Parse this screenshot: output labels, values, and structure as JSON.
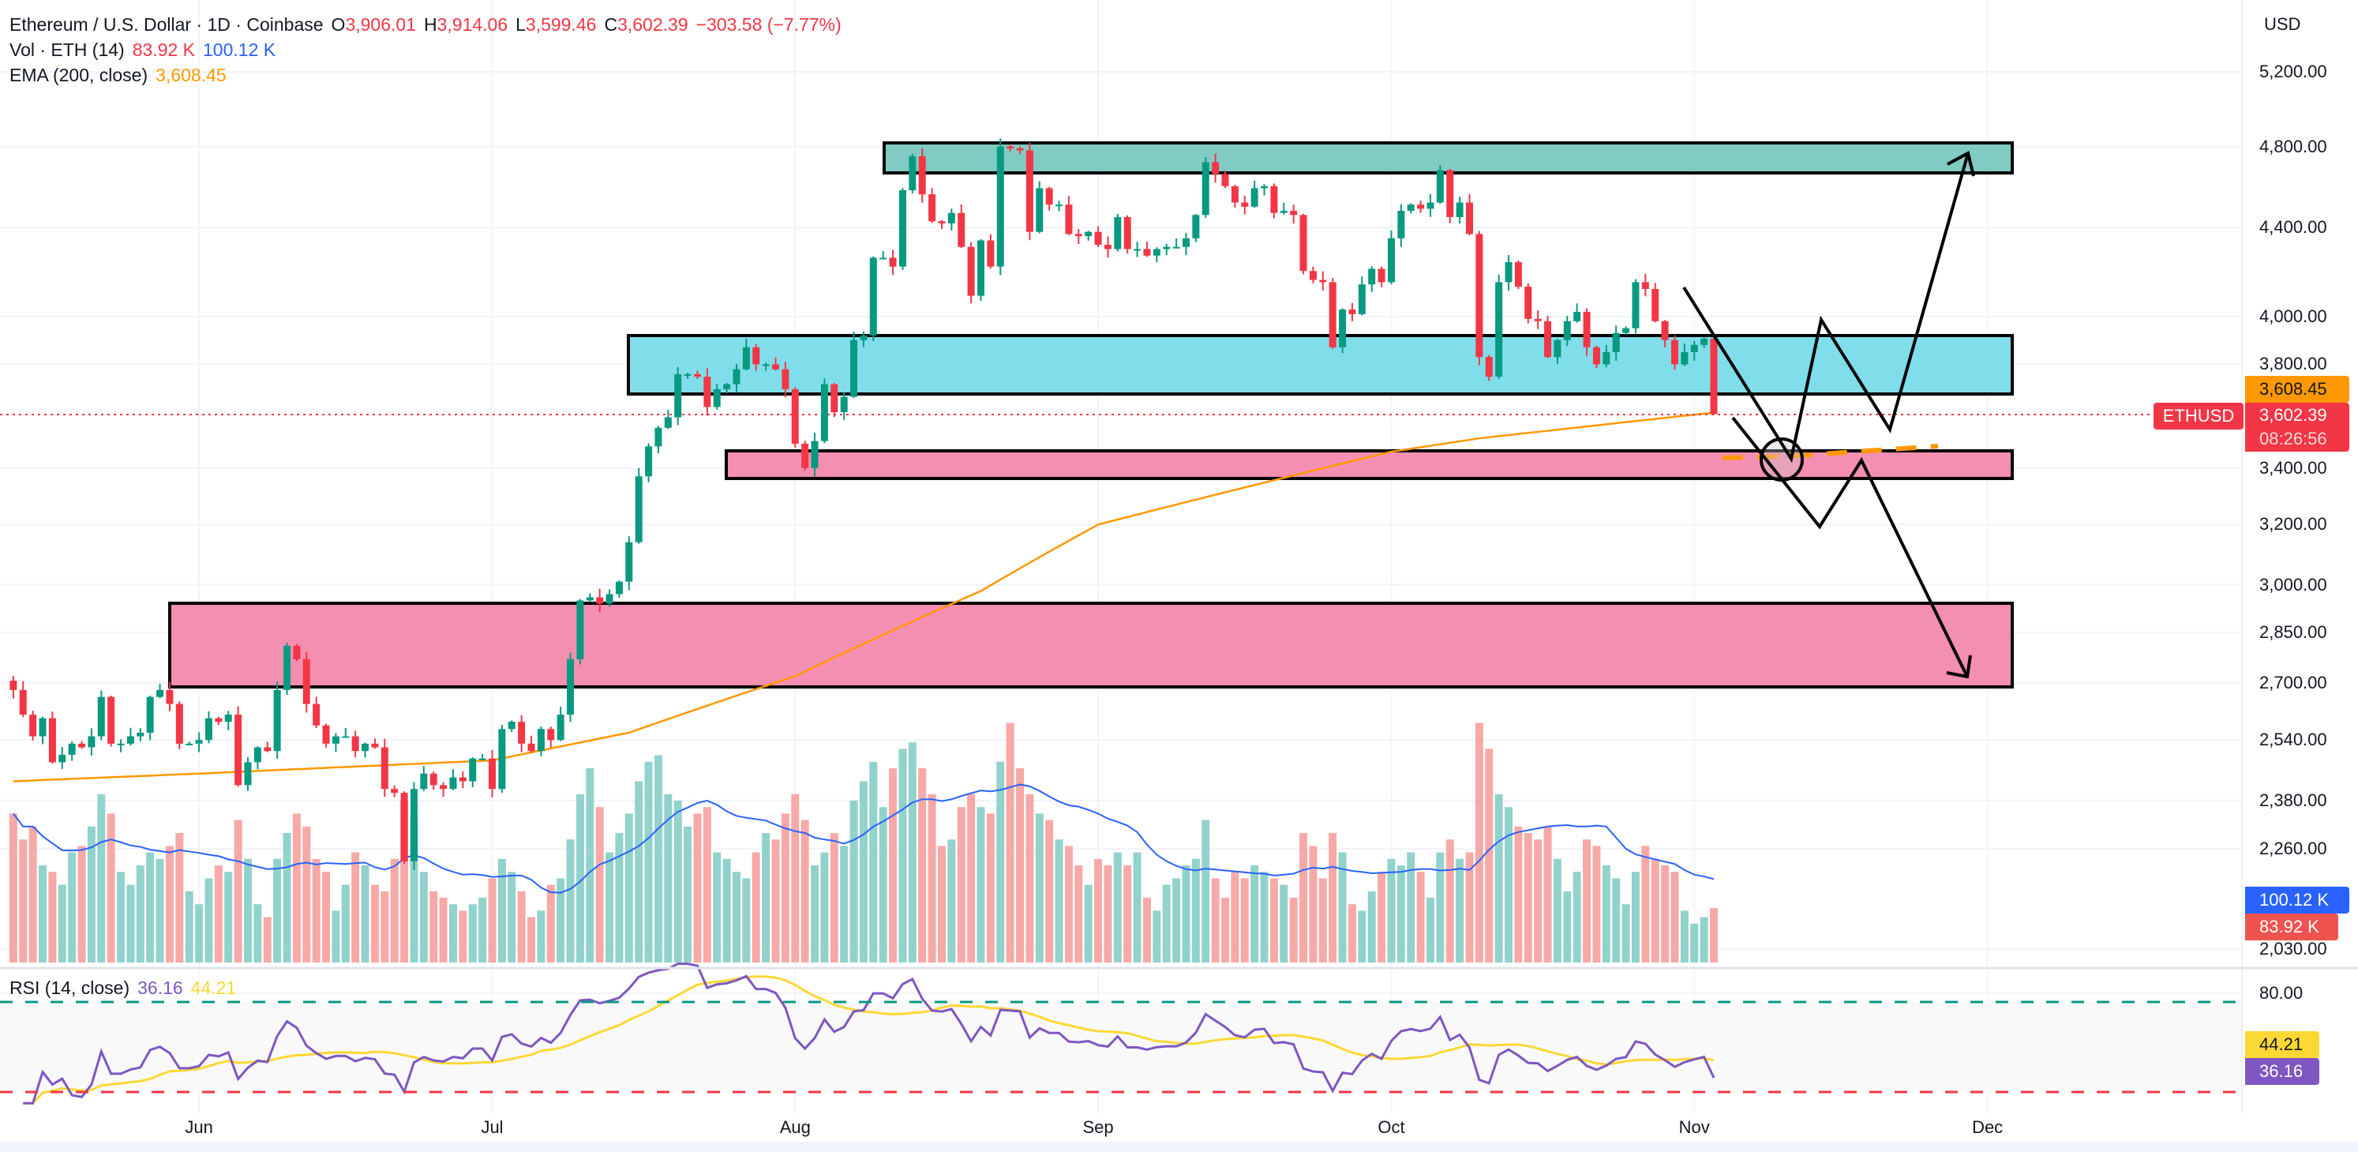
{
  "header": {
    "symbol": "Ethereum / U.S. Dollar · 1D · Coinbase",
    "o_label": "O",
    "o": "3,906.01",
    "h_label": "H",
    "h": "3,914.06",
    "l_label": "L",
    "l": "3,599.46",
    "c_label": "C",
    "c": "3,602.39",
    "change": "−303.58 (−7.77%)",
    "vol_label": "Vol · ETH (14)",
    "vol": "83.92 K",
    "vol_ma": "100.12 K",
    "ema_label": "EMA (200, close)",
    "ema": "3,608.45"
  },
  "rsi_legend": {
    "label": "RSI (14, close)",
    "value": "36.16",
    "ma": "44.21"
  },
  "axis": {
    "currency": "USD",
    "price_ticks": [
      "5,200.00",
      "4,800.00",
      "4,400.00",
      "4,000.00",
      "3,800.00",
      "3,400.00",
      "3,200.00",
      "3,000.00",
      "2,850.00",
      "2,700.00",
      "2,540.00",
      "2,380.00",
      "2,260.00",
      "2,030.00"
    ],
    "rsi_tick": "80.00",
    "months": [
      {
        "label": "Jun",
        "date": "2025-06-01"
      },
      {
        "label": "Jul",
        "date": "2025-07-01"
      },
      {
        "label": "Aug",
        "date": "2025-08-01"
      },
      {
        "label": "Sep",
        "date": "2025-09-01"
      },
      {
        "label": "Oct",
        "date": "2025-10-01"
      },
      {
        "label": "Nov",
        "date": "2025-11-01"
      },
      {
        "label": "Dec",
        "date": "2025-12-01"
      }
    ]
  },
  "tags": {
    "ema": "3,608.45",
    "symbol": "ETHUSD",
    "price": "3,602.39",
    "countdown": "08:26:56",
    "vol_ma": "100.12 K",
    "vol": "83.92 K",
    "rsi_ma": "44.21",
    "rsi": "36.16"
  },
  "colors": {
    "up": "#089981",
    "down": "#f23645",
    "ema": "#ff9800",
    "vol_ma": "#2962ff",
    "rsi": "#7e57c2",
    "rsi_ma": "#fdd835",
    "support_box": "#f48fb1",
    "mid_box": "#80deea",
    "top_box": "#80cbc4"
  },
  "chart_data": {
    "type": "candlestick",
    "scale": "log",
    "interval": "1D",
    "first_date": "2025-05-13",
    "last_date": "2025-11-03",
    "ylim": [
      2030,
      5200
    ],
    "closes": [
      2680,
      2610,
      2550,
      2600,
      2480,
      2500,
      2530,
      2520,
      2550,
      2660,
      2530,
      2530,
      2550,
      2560,
      2660,
      2680,
      2640,
      2530,
      2530,
      2540,
      2600,
      2590,
      2610,
      2420,
      2480,
      2520,
      2510,
      2680,
      2810,
      2770,
      2640,
      2580,
      2530,
      2550,
      2550,
      2510,
      2530,
      2520,
      2410,
      2400,
      2230,
      2410,
      2450,
      2420,
      2410,
      2440,
      2430,
      2490,
      2490,
      2410,
      2570,
      2590,
      2530,
      2510,
      2570,
      2540,
      2610,
      2770,
      2950,
      2960,
      2940,
      2970,
      3010,
      3140,
      3370,
      3480,
      3550,
      3590,
      3760,
      3760,
      3750,
      3630,
      3700,
      3720,
      3780,
      3870,
      3800,
      3800,
      3780,
      3700,
      3490,
      3400,
      3500,
      3720,
      3610,
      3670,
      3900,
      3920,
      4260,
      4260,
      4220,
      4580,
      4750,
      4560,
      4430,
      4420,
      4470,
      4310,
      4090,
      4340,
      4220,
      4800,
      4790,
      4780,
      4380,
      4590,
      4510,
      4510,
      4370,
      4360,
      4380,
      4320,
      4300,
      4450,
      4300,
      4300,
      4270,
      4300,
      4310,
      4310,
      4350,
      4460,
      4720,
      4660,
      4600,
      4520,
      4500,
      4590,
      4600,
      4470,
      4480,
      4460,
      4200,
      4160,
      4150,
      3870,
      4030,
      4010,
      4140,
      4210,
      4150,
      4350,
      4480,
      4510,
      4490,
      4520,
      4680,
      4450,
      4520,
      4370,
      3830,
      3750,
      4150,
      4240,
      4130,
      3990,
      3980,
      3830,
      3900,
      3980,
      4020,
      3870,
      3800,
      3850,
      3930,
      3950,
      4150,
      4120,
      3980,
      3900,
      3800,
      3850,
      3880,
      3906.01,
      3602.39
    ],
    "last_ohlc": {
      "open": 3906.01,
      "high": 3914.06,
      "low": 3599.46,
      "close": 3602.39
    },
    "volume_k": [
      230,
      190,
      210,
      150,
      140,
      120,
      170,
      180,
      210,
      260,
      230,
      140,
      120,
      150,
      170,
      160,
      180,
      200,
      110,
      90,
      130,
      150,
      140,
      220,
      160,
      90,
      70,
      160,
      200,
      230,
      210,
      160,
      140,
      80,
      120,
      170,
      150,
      120,
      110,
      160,
      250,
      220,
      140,
      110,
      100,
      90,
      80,
      90,
      100,
      130,
      160,
      140,
      110,
      70,
      80,
      120,
      130,
      190,
      260,
      300,
      240,
      170,
      200,
      230,
      280,
      310,
      320,
      260,
      250,
      210,
      230,
      240,
      170,
      160,
      140,
      130,
      170,
      200,
      190,
      230,
      260,
      220,
      150,
      170,
      200,
      180,
      250,
      280,
      310,
      240,
      300,
      330,
      340,
      300,
      260,
      180,
      190,
      240,
      260,
      240,
      230,
      310,
      370,
      300,
      260,
      230,
      220,
      190,
      180,
      150,
      120,
      160,
      150,
      170,
      150,
      170,
      100,
      80,
      120,
      130,
      150,
      160,
      220,
      130,
      100,
      140,
      130,
      150,
      140,
      130,
      120,
      100,
      200,
      180,
      130,
      200,
      170,
      90,
      80,
      110,
      140,
      160,
      150,
      170,
      140,
      100,
      170,
      190,
      160,
      170,
      370,
      330,
      260,
      240,
      210,
      200,
      190,
      210,
      160,
      110,
      140,
      190,
      180,
      150,
      130,
      90,
      140,
      180,
      160,
      150,
      140,
      80,
      60,
      70,
      83.92
    ],
    "ema200": [
      [
        "2025-05-13",
        2430
      ],
      [
        "2025-06-01",
        2450
      ],
      [
        "2025-07-01",
        2485
      ],
      [
        "2025-07-15",
        2560
      ],
      [
        "2025-08-01",
        2720
      ],
      [
        "2025-08-20",
        2980
      ],
      [
        "2025-09-01",
        3200
      ],
      [
        "2025-10-01",
        3460
      ],
      [
        "2025-10-10",
        3510
      ],
      [
        "2025-11-03",
        3608.45
      ]
    ],
    "rsi_bands": [
      70,
      30
    ]
  }
}
